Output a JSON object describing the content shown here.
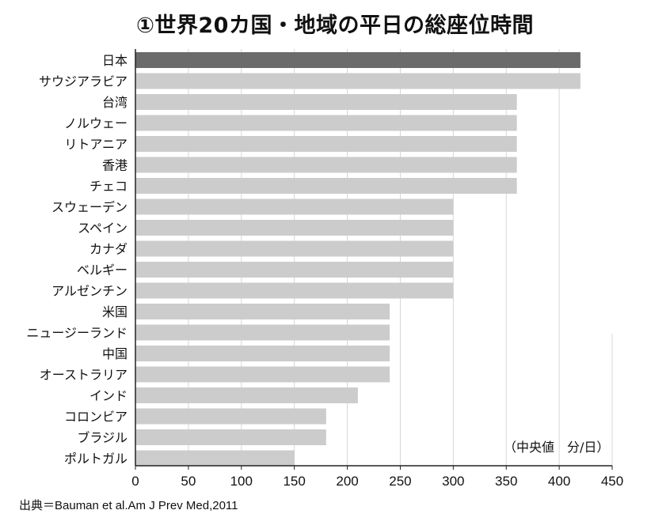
{
  "title": "①世界20カ国・地域の平日の総座位時間",
  "source": "出典＝Bauman et al.Am J Prev Med,2011",
  "unit_label": "（中央値　分/日）",
  "colors": {
    "highlight": "#6b6b6b",
    "bar": "#cccccc",
    "grid": "#d6d6d6",
    "axis": "#222222"
  },
  "chart_data": {
    "type": "bar",
    "orientation": "horizontal",
    "title": "①世界20カ国・地域の平日の総座位時間",
    "xlabel": "",
    "ylabel": "",
    "xlim": [
      0,
      450
    ],
    "xticks": [
      0,
      50,
      100,
      150,
      200,
      250,
      300,
      350,
      400,
      450
    ],
    "grid": true,
    "highlight_category": "日本",
    "categories": [
      "日本",
      "サウジアラビア",
      "台湾",
      "ノルウェー",
      "リトアニア",
      "香港",
      "チェコ",
      "スウェーデン",
      "スペイン",
      "カナダ",
      "ベルギー",
      "アルゼンチン",
      "米国",
      "ニュージーランド",
      "中国",
      "オーストラリア",
      "インド",
      "コロンビア",
      "ブラジル",
      "ポルトガル"
    ],
    "values": [
      420,
      420,
      360,
      360,
      360,
      360,
      360,
      300,
      300,
      300,
      300,
      300,
      240,
      240,
      240,
      240,
      210,
      180,
      180,
      150
    ]
  }
}
